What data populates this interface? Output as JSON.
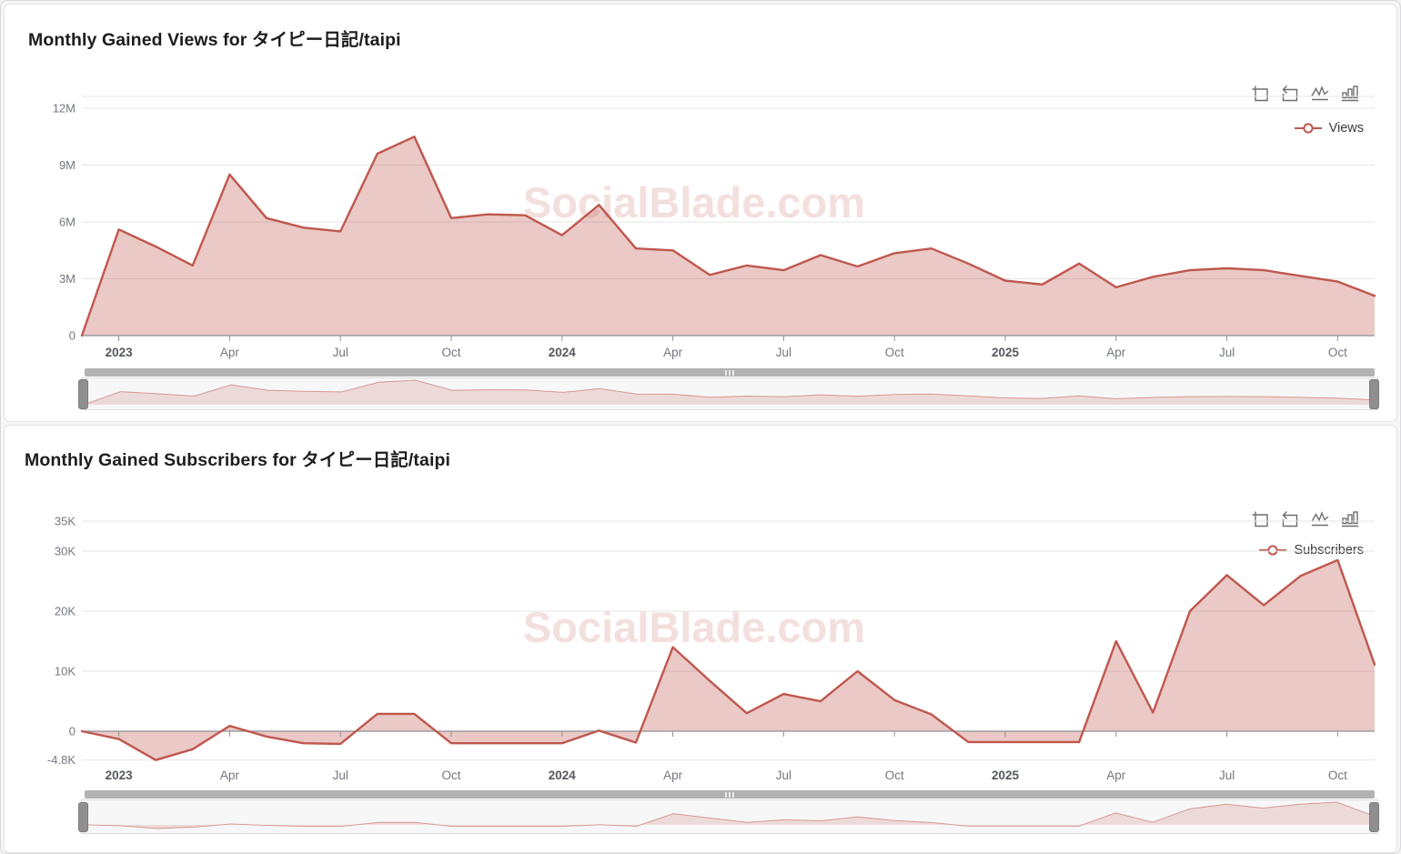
{
  "watermark": "SocialBlade.com",
  "colors": {
    "series": "#bf574d",
    "series_fill": "rgba(191,87,77,0.32)",
    "mini_fill": "rgba(191,87,77,0.18)",
    "mini_line": "rgba(191,87,77,0.55)",
    "watermark": "#eccbc7",
    "grid_line": "#e4e4e6",
    "axis_line": "#8d9097",
    "axis_label": "#73777f",
    "axis_label_bold": "#55585e"
  },
  "toolbox": {
    "icons": [
      "datazoom-select",
      "restore",
      "switch-to-line-chart",
      "switch-to-bar-chart"
    ]
  },
  "chart_data": [
    {
      "type": "area",
      "title": "Monthly Gained Views for タイピー日記/taipi",
      "legend_label": "Views",
      "legend_position": "top-right",
      "grid": true,
      "values_unit": "millions of views",
      "ylim": [
        0,
        12
      ],
      "x": [
        "2022-12",
        "2023-01",
        "2023-02",
        "2023-03",
        "2023-04",
        "2023-05",
        "2023-06",
        "2023-07",
        "2023-08",
        "2023-09",
        "2023-10",
        "2023-11",
        "2023-12",
        "2024-01",
        "2024-02",
        "2024-03",
        "2024-04",
        "2024-05",
        "2024-06",
        "2024-07",
        "2024-08",
        "2024-09",
        "2024-10",
        "2024-11",
        "2024-12",
        "2025-01",
        "2025-02",
        "2025-03",
        "2025-04",
        "2025-05",
        "2025-06",
        "2025-07",
        "2025-08",
        "2025-09",
        "2025-10",
        "2025-11"
      ],
      "values": [
        0,
        5.6,
        4.7,
        3.7,
        8.5,
        6.2,
        5.7,
        5.5,
        9.6,
        10.5,
        6.2,
        6.4,
        6.35,
        5.3,
        6.9,
        4.6,
        4.5,
        3.2,
        3.7,
        3.45,
        4.25,
        3.65,
        4.35,
        4.6,
        3.8,
        2.9,
        2.7,
        3.8,
        2.55,
        3.1,
        3.45,
        3.55,
        3.45,
        3.15,
        2.85,
        2.1
      ],
      "y_ticks": [
        {
          "v": 12,
          "label": "12M"
        },
        {
          "v": 9,
          "label": "9M"
        },
        {
          "v": 6,
          "label": "6M"
        },
        {
          "v": 3,
          "label": "3M"
        },
        {
          "v": 0,
          "label": "0"
        }
      ],
      "x_ticks": [
        {
          "i": 1,
          "label": "2023",
          "bold": true
        },
        {
          "i": 4,
          "label": "Apr"
        },
        {
          "i": 7,
          "label": "Jul"
        },
        {
          "i": 10,
          "label": "Oct"
        },
        {
          "i": 13,
          "label": "2024",
          "bold": true
        },
        {
          "i": 16,
          "label": "Apr"
        },
        {
          "i": 19,
          "label": "Jul"
        },
        {
          "i": 22,
          "label": "Oct"
        },
        {
          "i": 25,
          "label": "2025",
          "bold": true
        },
        {
          "i": 28,
          "label": "Apr"
        },
        {
          "i": 31,
          "label": "Jul"
        },
        {
          "i": 34,
          "label": "Oct"
        }
      ]
    },
    {
      "type": "area",
      "title": "Monthly Gained Subscribers for タイピー日記/taipi",
      "legend_label": "Subscribers",
      "legend_position": "top-right",
      "grid": true,
      "values_unit": "thousands of subscribers",
      "ylim": [
        -4.8,
        35
      ],
      "x": [
        "2022-12",
        "2023-01",
        "2023-02",
        "2023-03",
        "2023-04",
        "2023-05",
        "2023-06",
        "2023-07",
        "2023-08",
        "2023-09",
        "2023-10",
        "2023-11",
        "2023-12",
        "2024-01",
        "2024-02",
        "2024-03",
        "2024-04",
        "2024-05",
        "2024-06",
        "2024-07",
        "2024-08",
        "2024-09",
        "2024-10",
        "2024-11",
        "2024-12",
        "2025-01",
        "2025-02",
        "2025-03",
        "2025-04",
        "2025-05",
        "2025-06",
        "2025-07",
        "2025-08",
        "2025-09",
        "2025-10",
        "2025-11"
      ],
      "values": [
        0,
        -1.3,
        -4.8,
        -3.0,
        0.9,
        -0.9,
        -2.0,
        -2.1,
        2.9,
        2.9,
        -2.0,
        -2.0,
        -2.0,
        -2.0,
        0.1,
        -1.9,
        14.0,
        8.4,
        3.0,
        6.2,
        5.0,
        10.0,
        5.2,
        2.8,
        -1.8,
        -1.8,
        -1.8,
        -1.8,
        15.0,
        3.1,
        20.0,
        26.0,
        21.0,
        25.9,
        28.5,
        11.1
      ],
      "y_ticks": [
        {
          "v": 35,
          "label": "35K"
        },
        {
          "v": 30,
          "label": "30K"
        },
        {
          "v": 20,
          "label": "20K"
        },
        {
          "v": 10,
          "label": "10K"
        },
        {
          "v": 0,
          "label": "0"
        },
        {
          "v": -4.8,
          "label": "-4.8K"
        }
      ],
      "x_ticks": [
        {
          "i": 1,
          "label": "2023",
          "bold": true
        },
        {
          "i": 4,
          "label": "Apr"
        },
        {
          "i": 7,
          "label": "Jul"
        },
        {
          "i": 10,
          "label": "Oct"
        },
        {
          "i": 13,
          "label": "2024",
          "bold": true
        },
        {
          "i": 16,
          "label": "Apr"
        },
        {
          "i": 19,
          "label": "Jul"
        },
        {
          "i": 22,
          "label": "Oct"
        },
        {
          "i": 25,
          "label": "2025",
          "bold": true
        },
        {
          "i": 28,
          "label": "Apr"
        },
        {
          "i": 31,
          "label": "Jul"
        },
        {
          "i": 34,
          "label": "Oct"
        }
      ]
    }
  ]
}
